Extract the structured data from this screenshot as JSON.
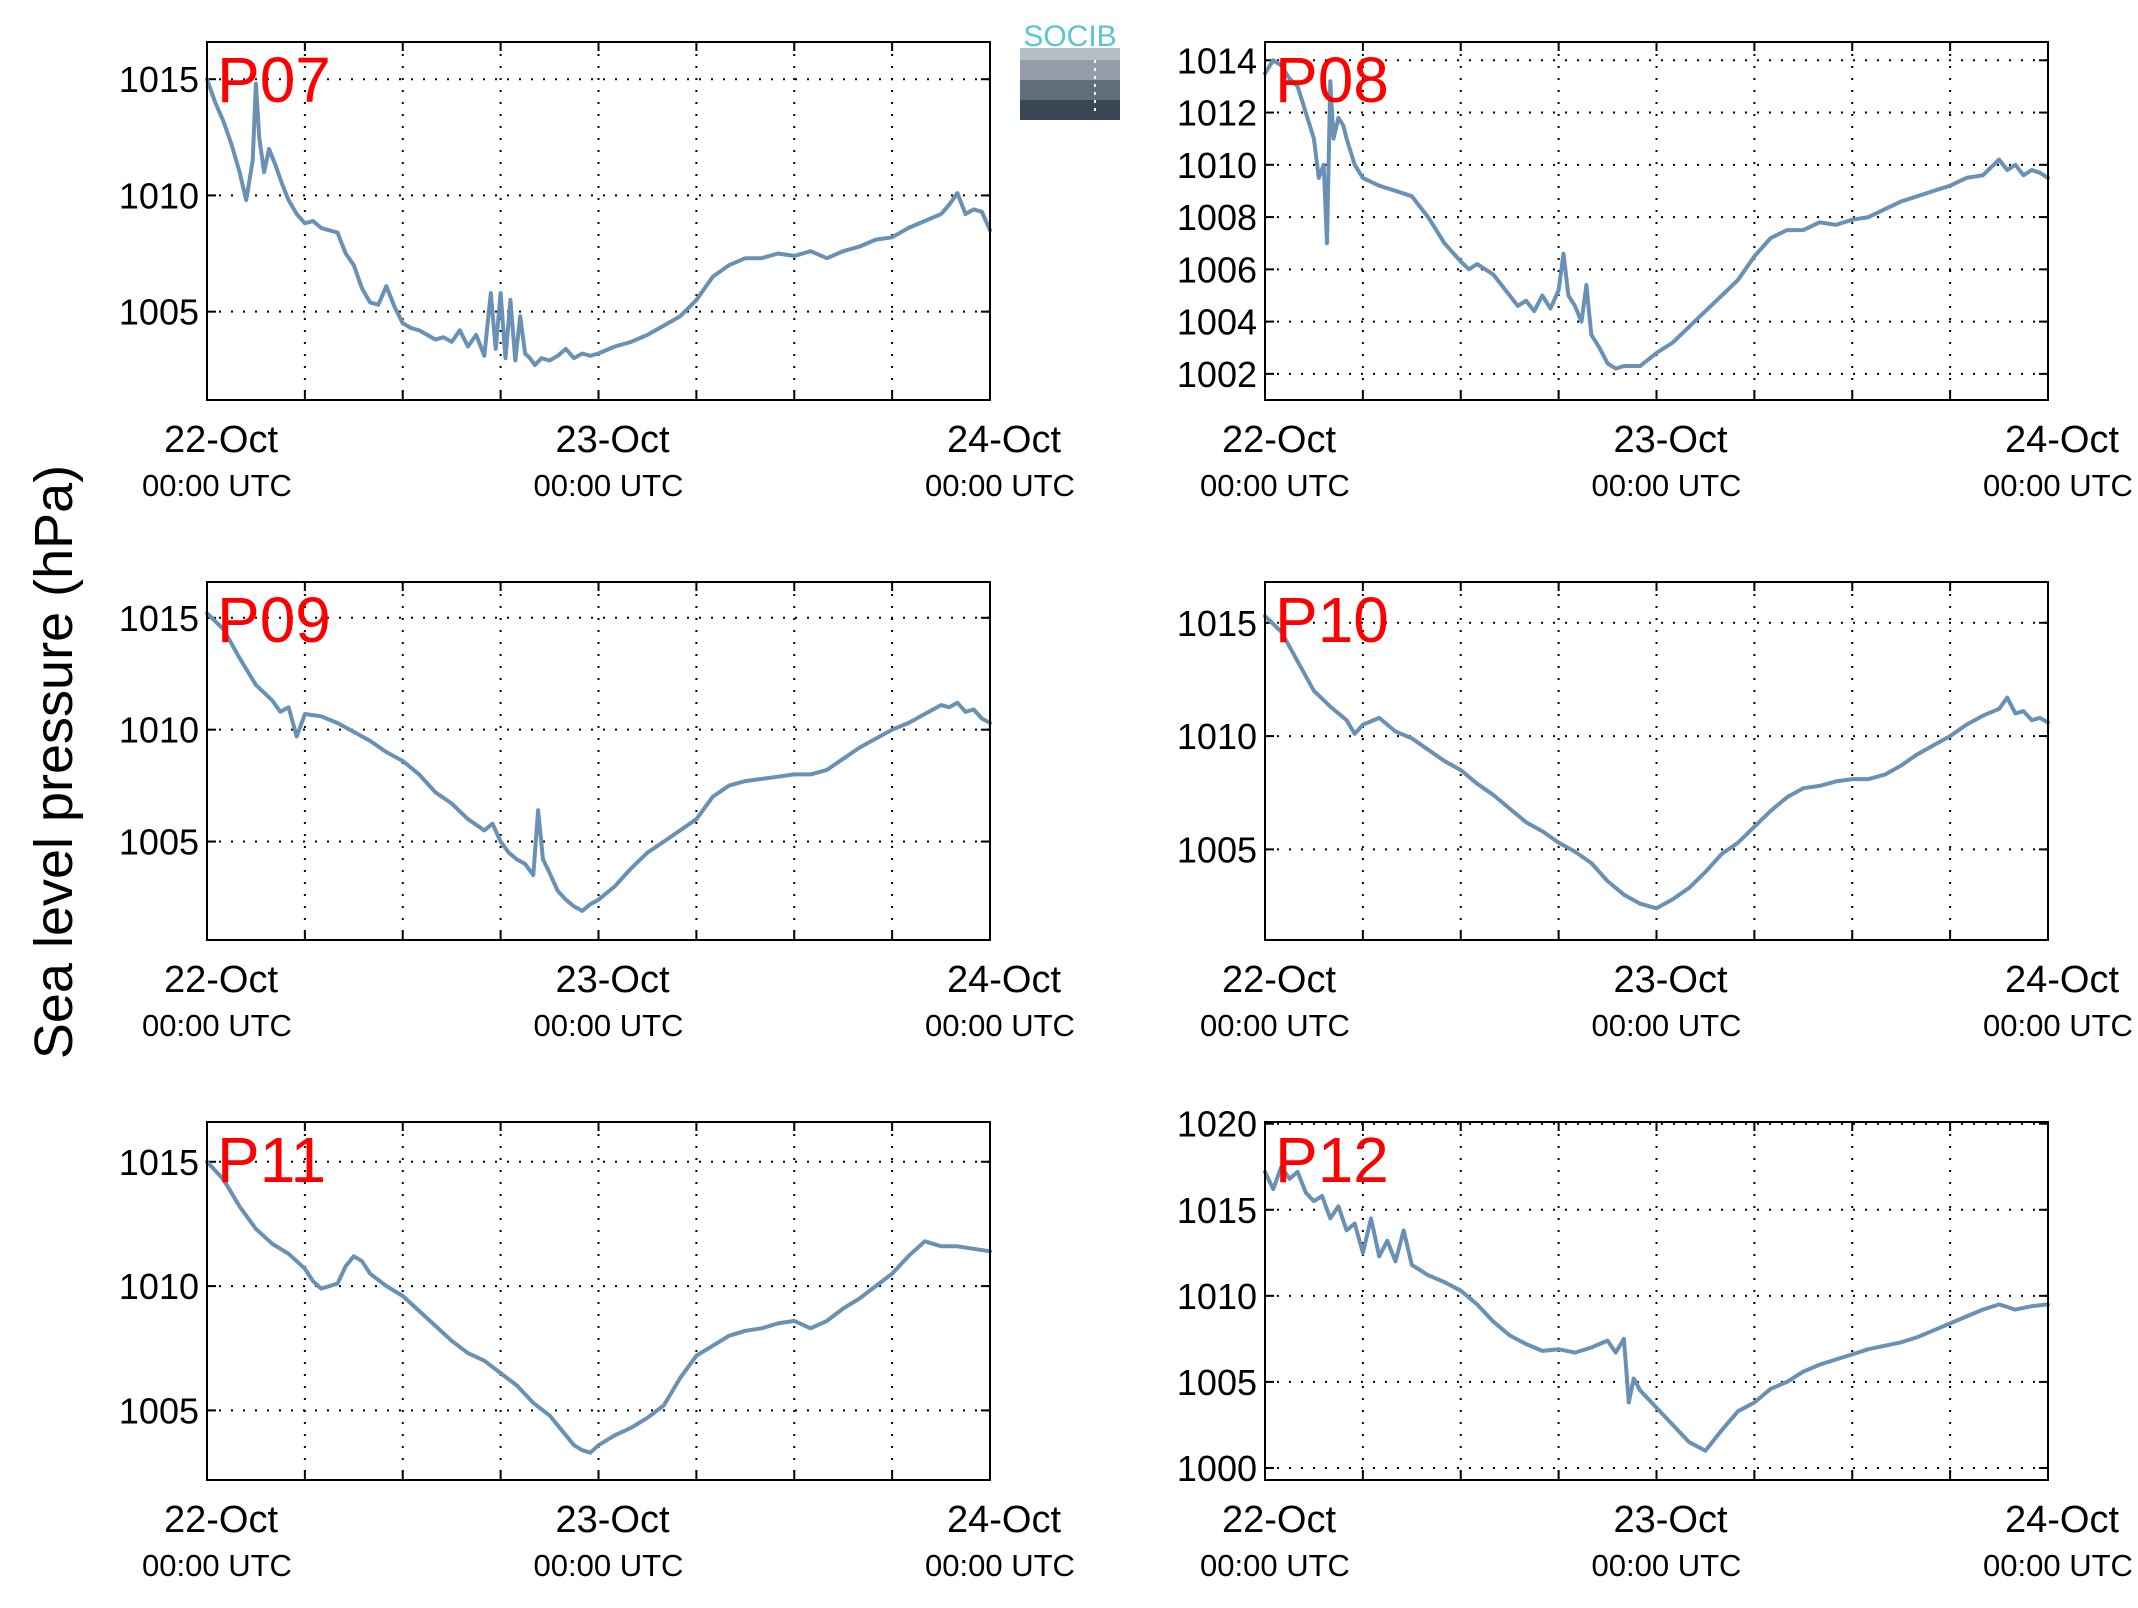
{
  "figure": {
    "ylabel": "Sea level pressure (hPa)",
    "logo": {
      "text": "SOCIB",
      "colors": {
        "text": "#5bc4d4",
        "top": "#9aa3ad",
        "bottom": "#2e3a45"
      }
    }
  },
  "chart_data": [
    {
      "type": "line",
      "title": "P07",
      "ylim": [
        1001.2,
        1016.6
      ],
      "yticks": [
        "1005",
        "1010",
        "1015"
      ],
      "xticks": [
        {
          "date": "22-Oct",
          "time": "00:00 UTC",
          "x": 0
        },
        {
          "date": "23-Oct",
          "time": "00:00 UTC",
          "x": 24
        },
        {
          "date": "24-Oct",
          "time": "00:00 UTC",
          "x": 48
        }
      ],
      "x_unit": "hours since 22-Oct 00:00 UTC",
      "xlim": [
        0,
        48
      ],
      "grid": true,
      "color": "#6891b5",
      "series": [
        {
          "x": [
            0,
            0.5,
            1,
            1.5,
            2,
            2.4,
            2.8,
            3,
            3.2,
            3.5,
            3.8,
            4.2,
            4.6,
            5,
            5.5,
            6,
            6.5,
            7,
            7.5,
            8,
            8.5,
            9,
            9.5,
            10,
            10.5,
            11,
            11.5,
            12,
            12.5,
            13,
            13.5,
            14,
            14.5,
            15,
            15.5,
            16,
            16.5,
            17,
            17.4,
            17.7,
            18,
            18.3,
            18.6,
            18.9,
            19.2,
            19.5,
            19.8,
            20.1,
            20.5,
            21,
            21.5,
            22,
            22.5,
            23,
            23.5,
            24,
            25,
            26,
            27,
            28,
            29,
            30,
            31,
            32,
            33,
            34,
            35,
            36,
            37,
            38,
            39,
            40,
            41,
            42,
            43,
            44,
            45,
            45.5,
            46,
            46.5,
            47,
            47.5,
            48
          ],
          "values": [
            1015.0,
            1014.0,
            1013.2,
            1012.2,
            1011.0,
            1009.8,
            1011.5,
            1014.8,
            1012.5,
            1011.0,
            1012.0,
            1011.3,
            1010.5,
            1009.8,
            1009.2,
            1008.8,
            1008.9,
            1008.6,
            1008.5,
            1008.4,
            1007.5,
            1007.0,
            1006.0,
            1005.4,
            1005.3,
            1006.1,
            1005.2,
            1004.5,
            1004.3,
            1004.2,
            1004.0,
            1003.8,
            1003.9,
            1003.7,
            1004.2,
            1003.5,
            1004.0,
            1003.1,
            1005.8,
            1003.4,
            1005.8,
            1003.0,
            1005.5,
            1002.9,
            1004.8,
            1003.2,
            1003.0,
            1002.7,
            1003.0,
            1002.9,
            1003.1,
            1003.4,
            1003.0,
            1003.2,
            1003.1,
            1003.2,
            1003.5,
            1003.7,
            1004.0,
            1004.4,
            1004.8,
            1005.5,
            1006.5,
            1007.0,
            1007.3,
            1007.3,
            1007.5,
            1007.4,
            1007.6,
            1007.3,
            1007.6,
            1007.8,
            1008.1,
            1008.2,
            1008.6,
            1008.9,
            1009.2,
            1009.6,
            1010.1,
            1009.2,
            1009.4,
            1009.3,
            1008.5
          ]
        }
      ]
    },
    {
      "type": "line",
      "title": "P08",
      "ylim": [
        1001.0,
        1014.7
      ],
      "yticks": [
        "1002",
        "1004",
        "1006",
        "1008",
        "1010",
        "1012",
        "1014"
      ],
      "xticks": [
        {
          "date": "22-Oct",
          "time": "00:00 UTC",
          "x": 0
        },
        {
          "date": "23-Oct",
          "time": "00:00 UTC",
          "x": 24
        },
        {
          "date": "24-Oct",
          "time": "00:00 UTC",
          "x": 48
        }
      ],
      "x_unit": "hours since 22-Oct 00:00 UTC",
      "xlim": [
        0,
        48
      ],
      "grid": true,
      "color": "#6891b5",
      "series": [
        {
          "x": [
            0,
            0.5,
            1,
            1.5,
            2,
            2.5,
            3,
            3.3,
            3.6,
            3.8,
            4.0,
            4.2,
            4.5,
            4.8,
            5,
            5.5,
            6,
            7,
            8,
            9,
            10,
            10.5,
            11,
            12,
            12.5,
            13,
            13.5,
            14,
            15,
            15.5,
            16,
            16.5,
            17,
            17.5,
            18,
            18.3,
            18.6,
            19,
            19.4,
            19.7,
            20,
            20.5,
            21,
            21.5,
            22,
            23,
            24,
            25,
            26,
            27,
            28,
            29,
            30,
            31,
            32,
            33,
            34,
            35,
            36,
            37,
            38,
            39,
            40,
            41,
            42,
            43,
            44,
            45,
            45.5,
            46,
            46.5,
            47,
            47.5,
            48
          ],
          "values": [
            1013.5,
            1014.0,
            1013.8,
            1013.3,
            1013.0,
            1012.0,
            1011.0,
            1009.5,
            1010.0,
            1007.0,
            1013.2,
            1011.0,
            1011.8,
            1011.5,
            1011.0,
            1010.0,
            1009.5,
            1009.2,
            1009.0,
            1008.8,
            1008.0,
            1007.5,
            1007.0,
            1006.3,
            1006.0,
            1006.2,
            1006.0,
            1005.8,
            1005.0,
            1004.6,
            1004.8,
            1004.4,
            1005.0,
            1004.5,
            1005.2,
            1006.6,
            1005.0,
            1004.6,
            1004.0,
            1005.4,
            1003.5,
            1003.0,
            1002.4,
            1002.2,
            1002.3,
            1002.3,
            1002.8,
            1003.2,
            1003.8,
            1004.4,
            1005.0,
            1005.6,
            1006.5,
            1007.2,
            1007.5,
            1007.5,
            1007.8,
            1007.7,
            1007.9,
            1008.0,
            1008.3,
            1008.6,
            1008.8,
            1009.0,
            1009.2,
            1009.5,
            1009.6,
            1010.2,
            1009.8,
            1010.0,
            1009.6,
            1009.8,
            1009.7,
            1009.5
          ]
        }
      ]
    },
    {
      "type": "line",
      "title": "P09",
      "ylim": [
        1000.6,
        1016.6
      ],
      "yticks": [
        "1005",
        "1010",
        "1015"
      ],
      "xticks": [
        {
          "date": "22-Oct",
          "time": "00:00 UTC",
          "x": 0
        },
        {
          "date": "23-Oct",
          "time": "00:00 UTC",
          "x": 24
        },
        {
          "date": "24-Oct",
          "time": "00:00 UTC",
          "x": 48
        }
      ],
      "x_unit": "hours since 22-Oct 00:00 UTC",
      "xlim": [
        0,
        48
      ],
      "grid": true,
      "color": "#6891b5",
      "series": [
        {
          "x": [
            0,
            1,
            2,
            3,
            4,
            4.5,
            5,
            5.5,
            6,
            7,
            8,
            9,
            10,
            11,
            12,
            13,
            14,
            15,
            16,
            17,
            17.5,
            18,
            18.5,
            19,
            19.5,
            20,
            20.3,
            20.6,
            21,
            21.5,
            22,
            22.5,
            23,
            23.5,
            24,
            25,
            26,
            27,
            28,
            29,
            30,
            31,
            32,
            33,
            34,
            35,
            36,
            37,
            38,
            39,
            40,
            41,
            42,
            43,
            44,
            45,
            45.5,
            46,
            46.5,
            47,
            47.5,
            48
          ],
          "values": [
            1015.2,
            1014.5,
            1013.2,
            1012.0,
            1011.3,
            1010.8,
            1011.0,
            1009.7,
            1010.7,
            1010.6,
            1010.3,
            1009.9,
            1009.5,
            1009.0,
            1008.6,
            1008.0,
            1007.2,
            1006.7,
            1006.0,
            1005.5,
            1005.8,
            1005.0,
            1004.5,
            1004.2,
            1004.0,
            1003.5,
            1006.4,
            1004.2,
            1003.6,
            1002.8,
            1002.4,
            1002.1,
            1001.9,
            1002.2,
            1002.4,
            1003.0,
            1003.8,
            1004.5,
            1005.0,
            1005.5,
            1006.0,
            1007.0,
            1007.5,
            1007.7,
            1007.8,
            1007.9,
            1008.0,
            1008.0,
            1008.2,
            1008.7,
            1009.2,
            1009.6,
            1010.0,
            1010.3,
            1010.7,
            1011.1,
            1011.0,
            1011.2,
            1010.8,
            1010.9,
            1010.5,
            1010.3
          ]
        }
      ]
    },
    {
      "type": "line",
      "title": "P10",
      "ylim": [
        1001.0,
        1016.8
      ],
      "yticks": [
        "1005",
        "1010",
        "1015"
      ],
      "xticks": [
        {
          "date": "22-Oct",
          "time": "00:00 UTC",
          "x": 0
        },
        {
          "date": "23-Oct",
          "time": "00:00 UTC",
          "x": 24
        },
        {
          "date": "24-Oct",
          "time": "00:00 UTC",
          "x": 48
        }
      ],
      "x_unit": "hours since 22-Oct 00:00 UTC",
      "xlim": [
        0,
        48
      ],
      "grid": true,
      "color": "#6891b5",
      "series": [
        {
          "x": [
            0,
            1,
            2,
            3,
            4,
            5,
            5.5,
            6,
            7,
            8,
            9,
            10,
            11,
            12,
            13,
            14,
            15,
            16,
            17,
            18,
            19,
            20,
            21,
            22,
            23,
            24,
            25,
            26,
            27,
            28,
            29,
            30,
            31,
            32,
            33,
            34,
            35,
            36,
            37,
            38,
            39,
            40,
            41,
            42,
            43,
            44,
            45,
            45.5,
            46,
            46.5,
            47,
            47.5,
            48
          ],
          "values": [
            1015.3,
            1014.6,
            1013.3,
            1012.0,
            1011.3,
            1010.7,
            1010.1,
            1010.5,
            1010.8,
            1010.2,
            1009.9,
            1009.4,
            1008.9,
            1008.5,
            1007.9,
            1007.4,
            1006.8,
            1006.2,
            1005.8,
            1005.3,
            1004.9,
            1004.4,
            1003.6,
            1003.0,
            1002.6,
            1002.4,
            1002.8,
            1003.3,
            1004.0,
            1004.8,
            1005.3,
            1006.0,
            1006.7,
            1007.3,
            1007.7,
            1007.8,
            1008.0,
            1008.1,
            1008.1,
            1008.3,
            1008.7,
            1009.2,
            1009.6,
            1010.0,
            1010.5,
            1010.9,
            1011.2,
            1011.7,
            1011.0,
            1011.1,
            1010.7,
            1010.8,
            1010.6
          ]
        }
      ]
    },
    {
      "type": "line",
      "title": "P11",
      "ylim": [
        1002.2,
        1016.6
      ],
      "yticks": [
        "1005",
        "1010",
        "1015"
      ],
      "xticks": [
        {
          "date": "22-Oct",
          "time": "00:00 UTC",
          "x": 0
        },
        {
          "date": "23-Oct",
          "time": "00:00 UTC",
          "x": 24
        },
        {
          "date": "24-Oct",
          "time": "00:00 UTC",
          "x": 48
        }
      ],
      "x_unit": "hours since 22-Oct 00:00 UTC",
      "xlim": [
        0,
        48
      ],
      "grid": true,
      "color": "#6891b5",
      "series": [
        {
          "x": [
            0,
            1,
            2,
            3,
            4,
            5,
            6,
            6.5,
            7,
            7.5,
            8,
            8.5,
            9,
            9.5,
            10,
            11,
            12,
            13,
            14,
            15,
            16,
            17,
            18,
            19,
            20,
            21,
            22,
            22.5,
            23,
            23.5,
            24,
            25,
            26,
            27,
            28,
            29,
            30,
            31,
            32,
            33,
            34,
            35,
            36,
            37,
            38,
            39,
            40,
            41,
            42,
            43,
            44,
            45,
            46,
            47,
            48
          ],
          "values": [
            1015.0,
            1014.3,
            1013.2,
            1012.3,
            1011.7,
            1011.3,
            1010.7,
            1010.2,
            1009.9,
            1010.0,
            1010.1,
            1010.8,
            1011.2,
            1011.0,
            1010.5,
            1010.0,
            1009.6,
            1009.0,
            1008.4,
            1007.8,
            1007.3,
            1007.0,
            1006.5,
            1006.0,
            1005.3,
            1004.8,
            1004.0,
            1003.6,
            1003.4,
            1003.3,
            1003.6,
            1004.0,
            1004.3,
            1004.7,
            1005.2,
            1006.3,
            1007.2,
            1007.6,
            1008.0,
            1008.2,
            1008.3,
            1008.5,
            1008.6,
            1008.3,
            1008.6,
            1009.1,
            1009.5,
            1010.0,
            1010.5,
            1011.2,
            1011.8,
            1011.6,
            1011.6,
            1011.5,
            1011.4
          ]
        }
      ]
    },
    {
      "type": "line",
      "title": "P12",
      "ylim": [
        999.3,
        1020.1
      ],
      "yticks": [
        "1000",
        "1005",
        "1010",
        "1015",
        "1020"
      ],
      "xticks": [
        {
          "date": "22-Oct",
          "time": "00:00 UTC",
          "x": 0
        },
        {
          "date": "23-Oct",
          "time": "00:00 UTC",
          "x": 24
        },
        {
          "date": "24-Oct",
          "time": "00:00 UTC",
          "x": 48
        }
      ],
      "x_unit": "hours since 22-Oct 00:00 UTC",
      "xlim": [
        0,
        48
      ],
      "grid": true,
      "color": "#6891b5",
      "series": [
        {
          "x": [
            0,
            0.5,
            1,
            1.5,
            2,
            2.5,
            3,
            3.5,
            4,
            4.5,
            5,
            5.5,
            6,
            6.5,
            7,
            7.5,
            8,
            8.5,
            9,
            9.5,
            10,
            11,
            12,
            13,
            14,
            15,
            16,
            17,
            18,
            19,
            20,
            21,
            21.5,
            22,
            22.3,
            22.6,
            23,
            24,
            25,
            26,
            27,
            28,
            29,
            30,
            31,
            32,
            33,
            34,
            35,
            36,
            37,
            38,
            39,
            40,
            41,
            42,
            43,
            44,
            45,
            46,
            47,
            48
          ],
          "values": [
            1017.2,
            1016.2,
            1017.5,
            1016.8,
            1017.2,
            1016.0,
            1015.5,
            1015.8,
            1014.5,
            1015.2,
            1013.8,
            1014.2,
            1012.5,
            1014.5,
            1012.3,
            1013.2,
            1012.0,
            1013.8,
            1011.8,
            1011.5,
            1011.2,
            1010.8,
            1010.3,
            1009.5,
            1008.5,
            1007.7,
            1007.2,
            1006.8,
            1006.9,
            1006.7,
            1007.0,
            1007.4,
            1006.7,
            1007.5,
            1003.8,
            1005.2,
            1004.5,
            1003.5,
            1002.5,
            1001.5,
            1001.0,
            1002.2,
            1003.3,
            1003.8,
            1004.6,
            1005.0,
            1005.6,
            1006.0,
            1006.3,
            1006.6,
            1006.9,
            1007.1,
            1007.3,
            1007.6,
            1008.0,
            1008.4,
            1008.8,
            1009.2,
            1009.5,
            1009.2,
            1009.4,
            1009.5
          ]
        }
      ]
    }
  ]
}
